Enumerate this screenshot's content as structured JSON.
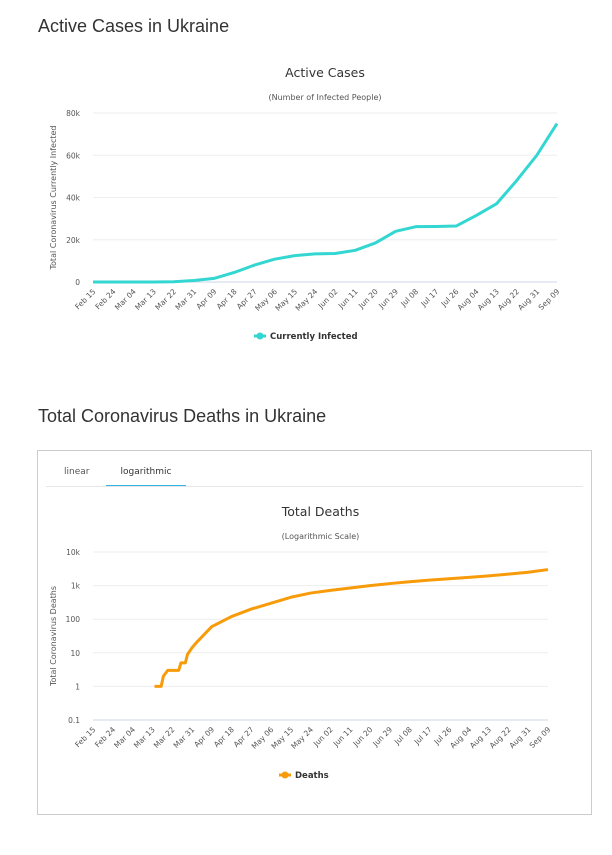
{
  "section1": {
    "heading": "Active Cases in Ukraine"
  },
  "section2": {
    "heading": "Total Coronavirus Deaths in Ukraine",
    "tabs": [
      {
        "label": "linear",
        "active": false
      },
      {
        "label": "logarithmic",
        "active": true
      }
    ]
  },
  "chart_data": [
    {
      "type": "line",
      "title": "Active Cases",
      "subtitle": "(Number of Infected People)",
      "ylabel": "Total Coronavirus Currently Infected",
      "xlabel": "",
      "yticks": [
        "0",
        "20k",
        "40k",
        "60k",
        "80k"
      ],
      "ylim": [
        0,
        80000
      ],
      "grid": true,
      "legend": "bottom",
      "categories": [
        "Feb 15",
        "Feb 24",
        "Mar 04",
        "Mar 13",
        "Mar 22",
        "Mar 31",
        "Apr 09",
        "Apr 18",
        "Apr 27",
        "May 06",
        "May 15",
        "May 24",
        "Jun 02",
        "Jun 11",
        "Jun 20",
        "Jun 29",
        "Jul 08",
        "Jul 17",
        "Jul 26",
        "Aug 04",
        "Aug 13",
        "Aug 22",
        "Aug 31",
        "Sep 09"
      ],
      "series": [
        {
          "name": "Currently Infected",
          "color": "#33d6d1",
          "values": [
            0,
            0,
            0,
            0,
            100,
            700,
            1700,
            4500,
            8000,
            10800,
            12500,
            13300,
            13500,
            15000,
            18500,
            24000,
            26200,
            26300,
            26500,
            31500,
            37000,
            48000,
            60000,
            75000
          ]
        }
      ]
    },
    {
      "type": "line",
      "title": "Total Deaths",
      "subtitle": "(Logarithmic Scale)",
      "ylabel": "Total Coronavirus Deaths",
      "xlabel": "",
      "yscale": "log",
      "yticks": [
        "0.1",
        "1",
        "10",
        "100",
        "1k",
        "10k"
      ],
      "ylim": [
        0.1,
        10000
      ],
      "grid": true,
      "legend": "bottom",
      "categories": [
        "Feb 15",
        "Feb 24",
        "Mar 04",
        "Mar 13",
        "Mar 22",
        "Mar 31",
        "Apr 09",
        "Apr 18",
        "Apr 27",
        "May 06",
        "May 15",
        "May 24",
        "Jun 02",
        "Jun 11",
        "Jun 20",
        "Jun 29",
        "Jul 08",
        "Jul 17",
        "Jul 26",
        "Aug 04",
        "Aug 13",
        "Aug 22",
        "Aug 31",
        "Sep 09"
      ],
      "series": [
        {
          "name": "Deaths",
          "color": "#f89b0a",
          "points": [
            [
              "Mar 14",
              1
            ],
            [
              "Mar 17",
              1
            ],
            [
              "Mar 18",
              2
            ],
            [
              "Mar 20",
              3
            ],
            [
              "Mar 25",
              3
            ],
            [
              "Mar 26",
              5
            ],
            [
              "Mar 28",
              5
            ],
            [
              "Mar 29",
              9
            ],
            [
              "Mar 31",
              14
            ],
            [
              "Apr 02",
              20
            ],
            [
              "Apr 05",
              32
            ],
            [
              "Apr 09",
              60
            ],
            [
              "Apr 18",
              120
            ],
            [
              "Apr 27",
              200
            ],
            [
              "May 06",
              300
            ],
            [
              "May 15",
              450
            ],
            [
              "May 24",
              600
            ],
            [
              "Jun 02",
              720
            ],
            [
              "Jun 11",
              850
            ],
            [
              "Jun 20",
              1000
            ],
            [
              "Jun 29",
              1150
            ],
            [
              "Jul 08",
              1300
            ],
            [
              "Jul 17",
              1450
            ],
            [
              "Jul 26",
              1600
            ],
            [
              "Aug 04",
              1750
            ],
            [
              "Aug 13",
              1950
            ],
            [
              "Aug 22",
              2200
            ],
            [
              "Aug 31",
              2500
            ],
            [
              "Sep 09",
              3000
            ]
          ]
        }
      ]
    }
  ]
}
